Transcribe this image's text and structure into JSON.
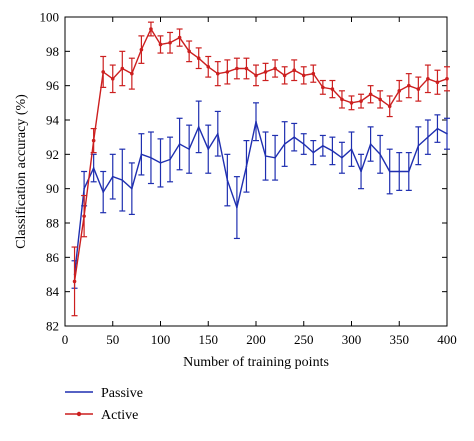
{
  "chart_data": {
    "type": "line",
    "title": "",
    "xlabel": "Number of training points",
    "ylabel": "Classification accuracy (%)",
    "xlim": [
      0,
      400
    ],
    "ylim": [
      82,
      100
    ],
    "xticks": [
      "0",
      "50",
      "100",
      "150",
      "200",
      "250",
      "300",
      "350",
      "400"
    ],
    "yticks": [
      "82",
      "84",
      "86",
      "88",
      "90",
      "92",
      "94",
      "96",
      "98",
      "100"
    ],
    "grid": false,
    "legend_position": "bottom-left",
    "series": [
      {
        "name": "Passive",
        "color": "#1f2fb0",
        "marker": "none",
        "x": [
          10,
          20,
          30,
          40,
          50,
          60,
          70,
          80,
          90,
          100,
          110,
          120,
          130,
          140,
          150,
          160,
          170,
          180,
          190,
          200,
          210,
          220,
          230,
          240,
          250,
          260,
          270,
          280,
          290,
          300,
          310,
          320,
          330,
          340,
          350,
          360,
          370,
          380,
          390,
          400
        ],
        "y": [
          85.0,
          90.0,
          91.2,
          89.8,
          90.7,
          90.5,
          90.0,
          92.0,
          91.8,
          91.5,
          91.7,
          92.6,
          92.3,
          93.6,
          92.3,
          93.2,
          90.5,
          88.9,
          91.3,
          93.9,
          91.9,
          91.8,
          92.6,
          93.0,
          92.6,
          92.1,
          92.5,
          92.2,
          91.8,
          92.3,
          91.0,
          92.6,
          92.0,
          91.0,
          91.0,
          91.0,
          92.5,
          93.0,
          93.5,
          93.2
        ],
        "err": [
          0.8,
          1.0,
          0.8,
          1.2,
          1.3,
          1.8,
          1.5,
          1.2,
          1.5,
          1.4,
          1.3,
          1.5,
          1.4,
          1.5,
          1.4,
          1.3,
          1.5,
          1.8,
          1.5,
          1.1,
          1.4,
          1.3,
          1.3,
          0.8,
          0.6,
          0.7,
          0.6,
          0.8,
          0.9,
          1.0,
          1.0,
          1.0,
          1.1,
          1.3,
          1.1,
          1.1,
          1.1,
          1.0,
          0.8,
          0.9
        ]
      },
      {
        "name": "Active",
        "color": "#cc1f1f",
        "marker": "dot",
        "x": [
          10,
          20,
          30,
          40,
          50,
          60,
          70,
          80,
          90,
          100,
          110,
          120,
          130,
          140,
          150,
          160,
          170,
          180,
          190,
          200,
          210,
          220,
          230,
          240,
          250,
          260,
          270,
          280,
          290,
          300,
          310,
          320,
          330,
          340,
          350,
          360,
          370,
          380,
          390,
          400
        ],
        "y": [
          84.6,
          88.4,
          92.8,
          96.8,
          96.4,
          97.0,
          96.7,
          98.1,
          99.3,
          98.4,
          98.5,
          98.8,
          98.0,
          97.6,
          97.1,
          96.7,
          96.8,
          97.0,
          97.0,
          96.6,
          96.8,
          97.0,
          96.6,
          96.9,
          96.6,
          96.7,
          95.9,
          95.8,
          95.2,
          95.0,
          95.1,
          95.5,
          95.2,
          94.8,
          95.7,
          96.0,
          95.8,
          96.4,
          96.2,
          96.4
        ],
        "err": [
          2.0,
          1.2,
          0.7,
          0.9,
          0.8,
          1.0,
          0.9,
          0.8,
          0.4,
          0.5,
          0.6,
          0.5,
          0.6,
          0.6,
          0.6,
          0.7,
          0.7,
          0.6,
          0.6,
          0.6,
          0.5,
          0.5,
          0.5,
          0.6,
          0.5,
          0.5,
          0.4,
          0.5,
          0.5,
          0.4,
          0.4,
          0.5,
          0.5,
          0.6,
          0.6,
          0.7,
          0.7,
          0.8,
          0.7,
          0.7
        ]
      }
    ]
  }
}
